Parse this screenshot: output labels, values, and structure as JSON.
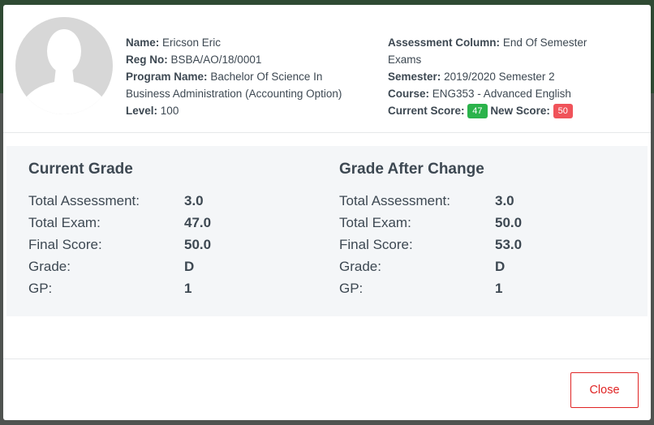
{
  "header": {
    "student": [
      {
        "label": "Name:",
        "value": "Ericson Eric"
      },
      {
        "label": "Reg No:",
        "value": "BSBA/AO/18/0001"
      },
      {
        "label": "Program Name:",
        "value": "Bachelor Of Science In Business Administration (Accounting Option)"
      },
      {
        "label": "Level:",
        "value": "100"
      }
    ],
    "assessment": [
      {
        "label": "Assessment Column:",
        "value": "End Of Semester Exams"
      },
      {
        "label": "Semester:",
        "value": "2019/2020 Semester 2"
      },
      {
        "label": "Course:",
        "value": "ENG353 - Advanced English"
      }
    ],
    "current_score": {
      "label": "Current Score:",
      "value": "47"
    },
    "new_score": {
      "label": "New Score:",
      "value": "50"
    }
  },
  "current_grade": {
    "title": "Current Grade",
    "rows": [
      [
        "Total Assessment:",
        "3.0"
      ],
      [
        "Total Exam:",
        "47.0"
      ],
      [
        "Final Score:",
        "50.0"
      ],
      [
        "Grade:",
        "D"
      ],
      [
        "GP:",
        "1"
      ]
    ]
  },
  "grade_after_change": {
    "title": "Grade After Change",
    "rows": [
      [
        "Total Assessment:",
        "3.0"
      ],
      [
        "Total Exam:",
        "50.0"
      ],
      [
        "Final Score:",
        "53.0"
      ],
      [
        "Grade:",
        "D"
      ],
      [
        "GP:",
        "1"
      ]
    ]
  },
  "footer": {
    "close": "Close"
  }
}
